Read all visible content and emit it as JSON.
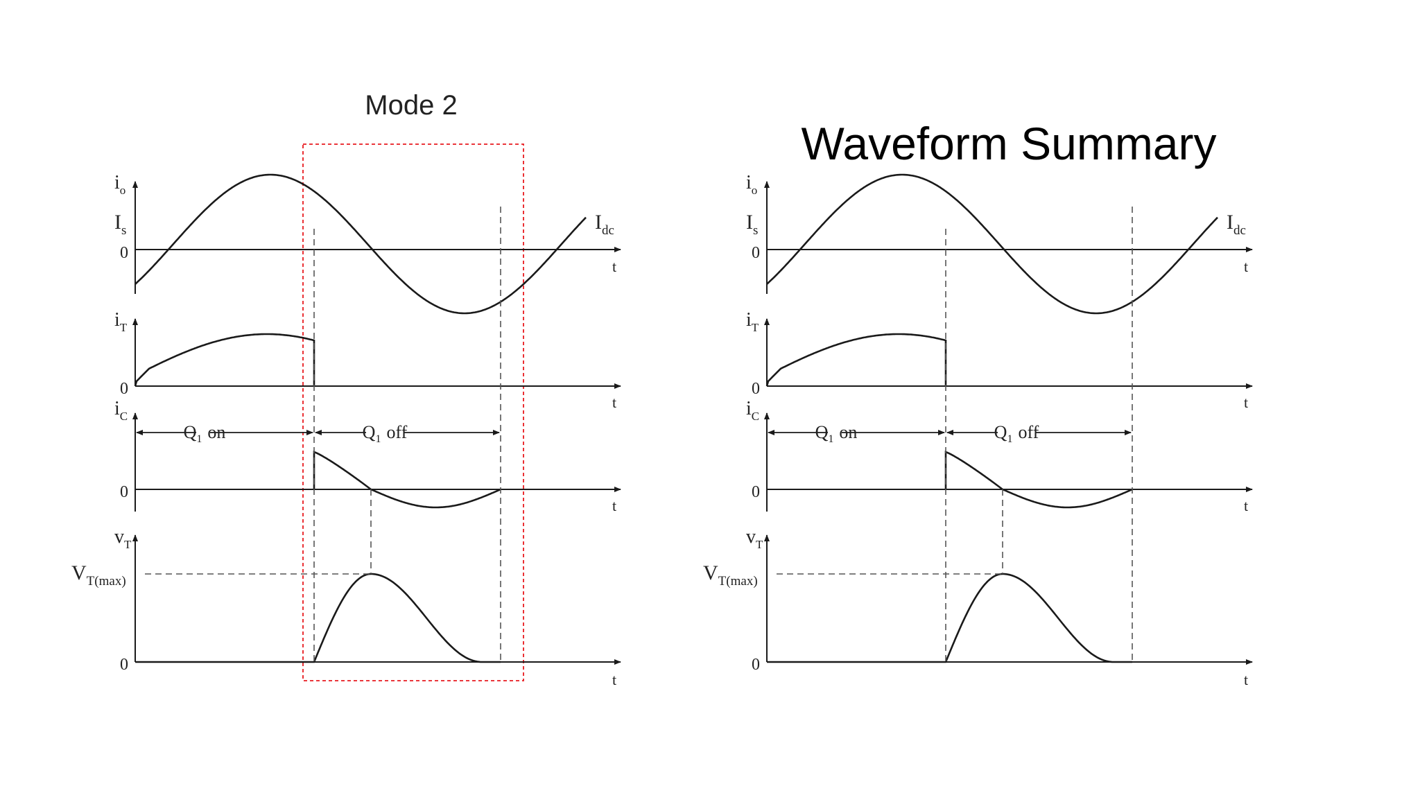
{
  "slide": {
    "title": "Waveform Summary",
    "mode_label": "Mode 2",
    "mode_color": "#e8191e"
  },
  "labels": {
    "io": "i",
    "io_sub": "o",
    "Is": "I",
    "Is_sub": "s",
    "Idc": "I",
    "Idc_sub": "dc",
    "iT": "i",
    "iT_sub": "T",
    "iC": "i",
    "iC_sub": "C",
    "vT": "v",
    "vT_sub": "T",
    "VTmax": "V",
    "VTmax_sub": "T(max)",
    "zero": "0",
    "t": "t",
    "q1": "Q",
    "q1_sub": "1",
    "on": "on",
    "off": "off"
  },
  "colors": {
    "ink": "#1a1a1a",
    "guide": "#555555"
  }
}
